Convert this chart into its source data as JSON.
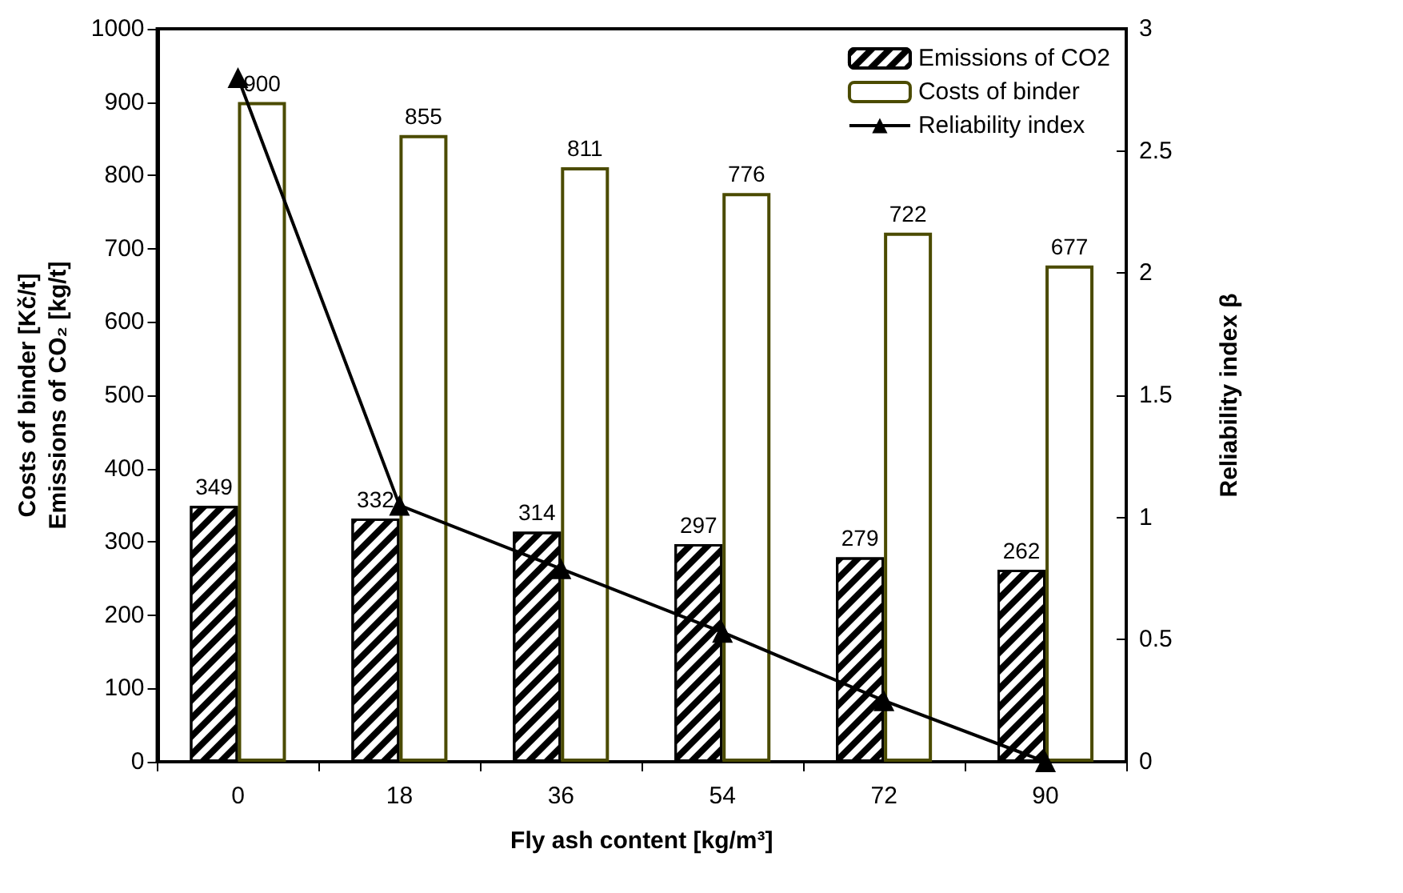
{
  "chart_data": {
    "type": "bar",
    "xlabel": "Fly ash content [kg/m³]",
    "ylabel": "Costs of binder [Kč/t]\nEmissions of CO₂ [kg/t]",
    "y2label": "Reliability index β",
    "categories": [
      "0",
      "18",
      "36",
      "54",
      "72",
      "90"
    ],
    "series": [
      {
        "name": "Emissions of CO2",
        "color": "#000000",
        "values": [
          349,
          332,
          314,
          297,
          279,
          262
        ],
        "value_labels": [
          "349",
          "332",
          "314",
          "297",
          "279",
          "262"
        ]
      },
      {
        "name": "Costs of binder",
        "color": "#4b4b00",
        "values": [
          900,
          855,
          811,
          776,
          722,
          677
        ],
        "value_labels": [
          "900",
          "855",
          "811",
          "776",
          "722",
          "677"
        ]
      },
      {
        "name": "Reliability index",
        "type": "line",
        "axis": "y2",
        "color": "#000000",
        "marker": "triangle",
        "line_style": "solid",
        "values": [
          2.8,
          1.05,
          0.79,
          0.53,
          0.25,
          0.0
        ]
      }
    ],
    "ylim": [
      0,
      1000
    ],
    "yticks": [
      0,
      100,
      200,
      300,
      400,
      500,
      600,
      700,
      800,
      900,
      1000
    ],
    "y2lim": [
      0,
      3
    ],
    "y2ticks": [
      0,
      0.5,
      1,
      1.5,
      2,
      2.5,
      3
    ],
    "grid": false,
    "legend": "top right"
  }
}
